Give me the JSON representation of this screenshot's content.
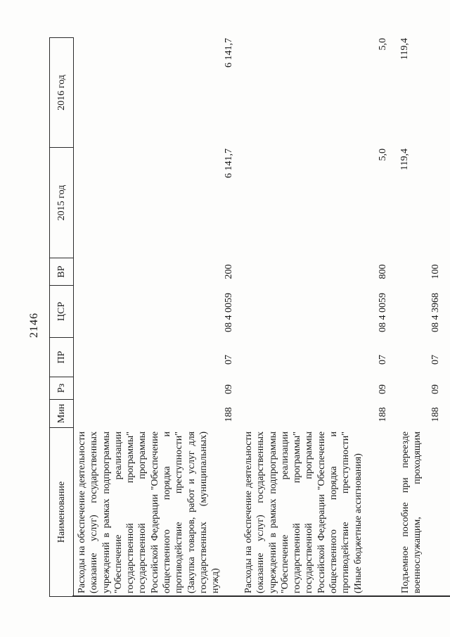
{
  "page_number": "2146",
  "table": {
    "columns": [
      {
        "label": "Наименование"
      },
      {
        "label": "Мин"
      },
      {
        "label": "Рз"
      },
      {
        "label": "ПР"
      },
      {
        "label": "ЦСР"
      },
      {
        "label": "ВР"
      },
      {
        "label": "2015 год"
      },
      {
        "label": "2016 год"
      }
    ],
    "rows": [
      {
        "name": "Расходы на обеспечение деятельности (оказание услуг) государственных учреждений в рамках подпрограммы \"Обеспечение реализации государственной программы\" государственной программы Российской Федерации \"Обеспечение общественного порядка и противодействие преступности\" (Закупка товаров, работ и услуг для государственных (муниципальных) нужд)",
        "min": "188",
        "rz": "09",
        "pr": "07",
        "csr": "08 4 0059",
        "vr": "200",
        "y2015": "6 141,7",
        "y2016": "6 141,7"
      },
      {
        "name": "Расходы на обеспечение деятельности (оказание услуг) государственных учреждений в рамках подпрограммы \"Обеспечение реализации государственной программы\" государственной программы Российской Федерации \"Обеспечение общественного порядка и противодействие преступности\" (Иные бюджетные ассигнования)",
        "min": "188",
        "rz": "09",
        "pr": "07",
        "csr": "08 4 0059",
        "vr": "800",
        "y2015": "5,0",
        "y2016": "5,0"
      },
      {
        "name": "Подъемное пособие при переезде военнослужащим, проходящим",
        "min": "188",
        "rz": "09",
        "pr": "07",
        "csr": "08 4 3968",
        "vr": "100",
        "y2015": "119,4",
        "y2016": "119,4"
      }
    ]
  }
}
